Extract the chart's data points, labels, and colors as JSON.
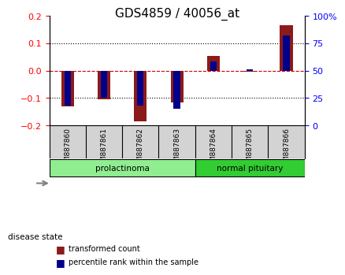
{
  "title": "GDS4859 / 40056_at",
  "samples": [
    "GSM887860",
    "GSM887861",
    "GSM887862",
    "GSM887863",
    "GSM887864",
    "GSM887865",
    "GSM887866"
  ],
  "transformed_counts": [
    -0.13,
    -0.105,
    -0.185,
    -0.115,
    0.052,
    -0.005,
    0.165
  ],
  "percentile_ranks": [
    18,
    25,
    18,
    15,
    58,
    51,
    82
  ],
  "ylim_left": [
    -0.2,
    0.2
  ],
  "ylim_right": [
    0,
    100
  ],
  "yticks_left": [
    -0.2,
    -0.1,
    0,
    0.1,
    0.2
  ],
  "yticks_right": [
    0,
    25,
    50,
    75,
    100
  ],
  "groups": [
    {
      "label": "prolactinoma",
      "samples": [
        0,
        1,
        2,
        3
      ],
      "color": "#90EE90"
    },
    {
      "label": "normal pituitary",
      "samples": [
        4,
        5,
        6
      ],
      "color": "#32CD32"
    }
  ],
  "bar_color": "#8B1A1A",
  "percentile_color": "#00008B",
  "background_color": "#ffffff",
  "grid_color": "#000000",
  "zero_line_color": "#cc0000",
  "sample_bg_color": "#d3d3d3"
}
